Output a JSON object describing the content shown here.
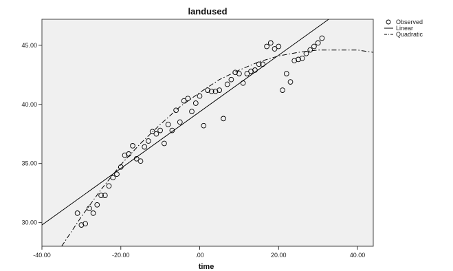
{
  "chart_data": {
    "type": "scatter",
    "title": "landused",
    "xlabel": "time",
    "ylabel": "",
    "xlim": [
      -40,
      44
    ],
    "ylim": [
      28,
      47.2
    ],
    "x_ticks": [
      -40,
      -20,
      0,
      20,
      40
    ],
    "x_tick_labels": [
      "-40.00",
      "-20.00",
      ".00",
      "20.00",
      "40.00"
    ],
    "y_ticks": [
      30,
      35,
      40,
      45
    ],
    "y_tick_labels": [
      "30.00",
      "35.00",
      "40.00",
      "45.00"
    ],
    "grid": false,
    "legend_position": "top-right",
    "legend": [
      "Observed",
      "Linear",
      "Quadratic"
    ],
    "background_color": "#f0f0f0",
    "series": [
      {
        "name": "Observed",
        "type": "scatter",
        "x": [
          -31,
          -30,
          -29,
          -28,
          -27,
          -26,
          -25,
          -24,
          -23,
          -22,
          -21,
          -20,
          -19,
          -18,
          -17,
          -16,
          -15,
          -14,
          -13,
          -12,
          -11,
          -10,
          -9,
          -8,
          -7,
          -6,
          -5,
          -4,
          -3,
          -2,
          -1,
          0,
          1,
          2,
          3,
          4,
          5,
          6,
          7,
          8,
          9,
          10,
          11,
          12,
          13,
          14,
          15,
          16,
          17,
          18,
          19,
          20,
          21,
          22,
          23,
          24,
          25,
          26,
          27,
          28,
          29,
          30,
          31
        ],
        "y": [
          30.8,
          29.8,
          29.9,
          31.2,
          30.8,
          31.5,
          32.3,
          32.3,
          33.1,
          33.8,
          34.1,
          34.7,
          35.7,
          35.8,
          36.5,
          35.4,
          35.2,
          36.4,
          36.9,
          37.7,
          37.5,
          37.8,
          36.7,
          38.3,
          37.8,
          39.5,
          38.5,
          40.3,
          40.5,
          39.4,
          40.1,
          40.7,
          38.2,
          41.2,
          41.1,
          41.1,
          41.2,
          38.8,
          41.7,
          42.1,
          42.7,
          42.6,
          41.8,
          42.6,
          42.8,
          42.9,
          43.4,
          43.4,
          44.9,
          45.2,
          44.7,
          44.9,
          41.2,
          42.6,
          41.9,
          43.7,
          43.8,
          43.9,
          44.3,
          44.6,
          44.9,
          45.2,
          45.6
        ]
      },
      {
        "name": "Linear",
        "type": "line",
        "x": [
          -40,
          32.7
        ],
        "y": [
          29.8,
          47.2
        ]
      },
      {
        "name": "Quadratic",
        "type": "line",
        "x": [
          -35,
          -30,
          -25,
          -20,
          -15,
          -10,
          -5,
          0,
          5,
          10,
          15,
          20,
          25,
          30,
          35,
          40,
          44
        ],
        "y": [
          28.0,
          30.5,
          32.8,
          34.9,
          36.7,
          38.3,
          39.8,
          41.0,
          42.1,
          42.9,
          43.6,
          44.1,
          44.4,
          44.6,
          44.6,
          44.6,
          44.4
        ]
      }
    ]
  }
}
